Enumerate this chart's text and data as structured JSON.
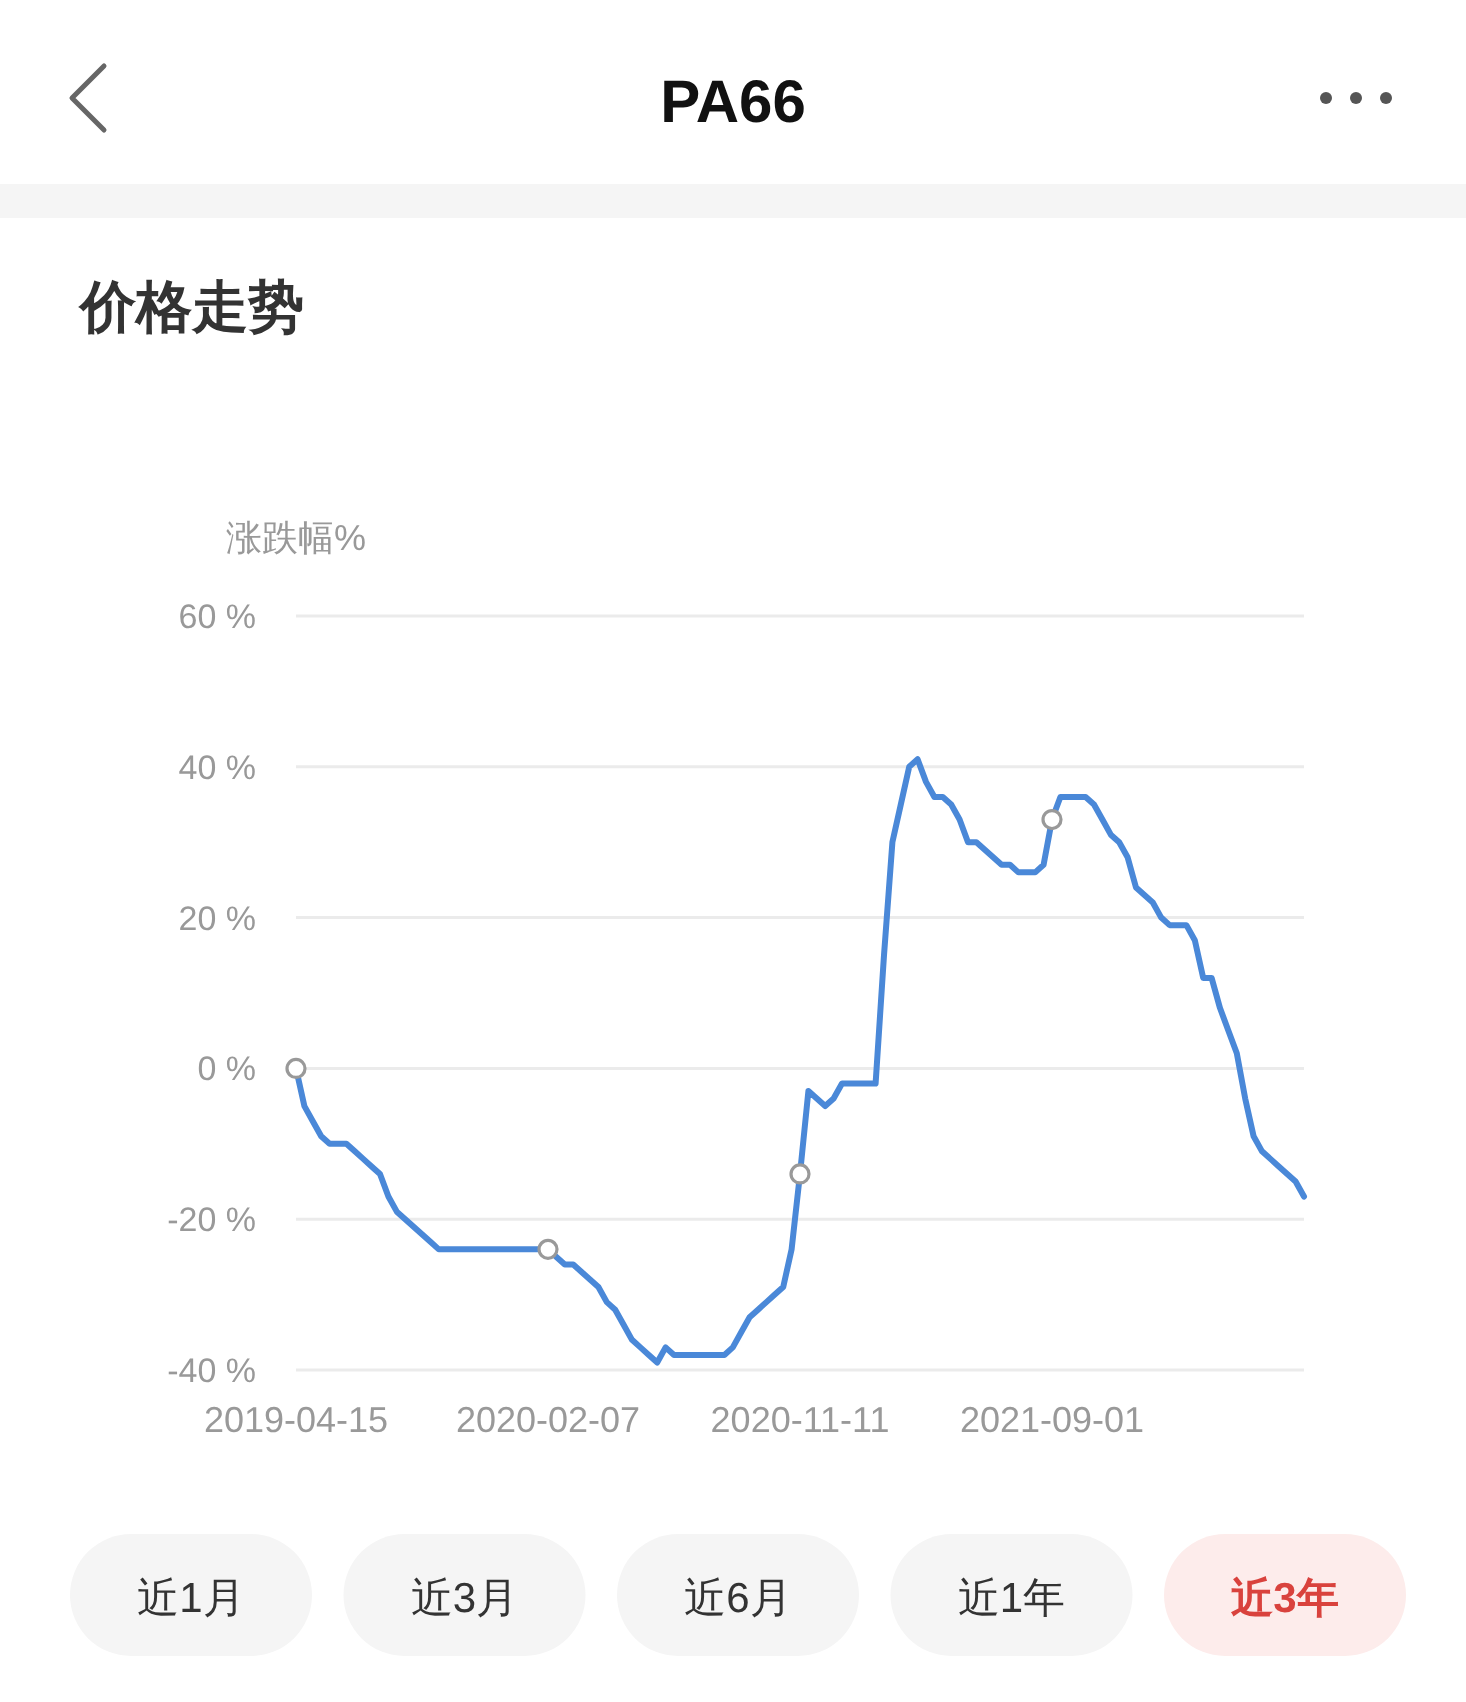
{
  "chart_data": {
    "type": "line",
    "title": "PA66",
    "subtitle": "价格走势",
    "ylabel": "涨跌幅%",
    "categories": [
      "2019-04-15",
      null,
      null,
      null,
      null,
      null,
      null,
      null,
      null,
      null,
      null,
      null,
      null,
      null,
      null,
      null,
      null,
      null,
      null,
      null,
      null,
      null,
      null,
      null,
      null,
      null,
      null,
      null,
      null,
      null,
      "2020-02-07",
      null,
      null,
      null,
      null,
      null,
      null,
      null,
      null,
      null,
      null,
      null,
      null,
      null,
      null,
      null,
      null,
      null,
      null,
      null,
      null,
      null,
      null,
      null,
      null,
      null,
      null,
      null,
      null,
      null,
      "2020-11-11",
      null,
      null,
      null,
      null,
      null,
      null,
      null,
      null,
      null,
      null,
      null,
      null,
      null,
      null,
      null,
      null,
      null,
      null,
      null,
      null,
      null,
      null,
      null,
      null,
      null,
      null,
      null,
      null,
      null,
      "2021-09-01",
      null,
      null,
      null,
      null,
      null,
      null,
      null,
      null,
      null,
      null,
      null,
      null,
      null,
      null,
      null,
      null,
      null,
      null,
      null,
      null,
      null,
      null,
      null,
      null,
      null,
      null,
      null,
      null,
      null,
      null
    ],
    "series": [
      {
        "color": "#4a88d8",
        "values": [
          0,
          -5,
          -7,
          -9,
          -10,
          -10,
          -10,
          -11,
          -12,
          -13,
          -14,
          -17,
          -19,
          -20,
          -21,
          -22,
          -23,
          -24,
          -24,
          -24,
          -24,
          -24,
          -24,
          -24,
          -24,
          -24,
          -24,
          -24,
          -24,
          -24,
          -24,
          -25,
          -26,
          -26,
          -27,
          -28,
          -29,
          -31,
          -32,
          -34,
          -36,
          -37,
          -38,
          -39,
          -37,
          -38,
          -38,
          -38,
          -38,
          -38,
          -38,
          -38,
          -37,
          -35,
          -33,
          -32,
          -31,
          -30,
          -29,
          -24,
          -14,
          -3,
          -4,
          -5,
          -4,
          -2,
          -2,
          -2,
          -2,
          -2,
          15,
          30,
          35,
          40,
          41,
          38,
          36,
          36,
          35,
          33,
          30,
          30,
          29,
          28,
          27,
          27,
          26,
          26,
          26,
          27,
          33,
          36,
          36,
          36,
          36,
          35,
          33,
          31,
          30,
          28,
          24,
          23,
          22,
          20,
          19,
          19,
          19,
          17,
          12,
          12,
          8,
          5,
          2,
          -4,
          -9,
          -11,
          -12,
          -13,
          -14,
          -15,
          -17
        ]
      },
      {
        "type": "scatter",
        "color": "#999999",
        "marker": "circle",
        "values": [
          0,
          null,
          null,
          null,
          null,
          null,
          null,
          null,
          null,
          null,
          null,
          null,
          null,
          null,
          null,
          null,
          null,
          null,
          null,
          null,
          null,
          null,
          null,
          null,
          null,
          null,
          null,
          null,
          null,
          null,
          -24,
          null,
          null,
          null,
          null,
          null,
          null,
          null,
          null,
          null,
          null,
          null,
          null,
          null,
          null,
          null,
          null,
          null,
          null,
          null,
          null,
          null,
          null,
          null,
          null,
          null,
          null,
          null,
          null,
          null,
          -14,
          null,
          null,
          null,
          null,
          null,
          null,
          null,
          null,
          null,
          null,
          null,
          null,
          null,
          null,
          null,
          null,
          null,
          null,
          null,
          null,
          null,
          null,
          null,
          null,
          null,
          null,
          null,
          null,
          null,
          33,
          null,
          null,
          null,
          null,
          null,
          null,
          null,
          null,
          null,
          null,
          null,
          null,
          null,
          null,
          null,
          null,
          null,
          null,
          null,
          null,
          null,
          null,
          null,
          null,
          null,
          null,
          null,
          null,
          null,
          null
        ]
      }
    ],
    "ylim": [
      -40,
      60
    ],
    "yticks": [
      {
        "value": -40,
        "label": "-40 %"
      },
      {
        "value": -20,
        "label": "-20 %"
      },
      {
        "value": 0,
        "label": "0 %"
      },
      {
        "value": 20,
        "label": "20 %"
      },
      {
        "value": 40,
        "label": "40 %"
      },
      {
        "value": 60,
        "label": "60 %"
      }
    ],
    "grid": "y",
    "annotations": [
      "近1月",
      "近3月",
      "近6月",
      "近1年",
      "近3年"
    ]
  }
}
